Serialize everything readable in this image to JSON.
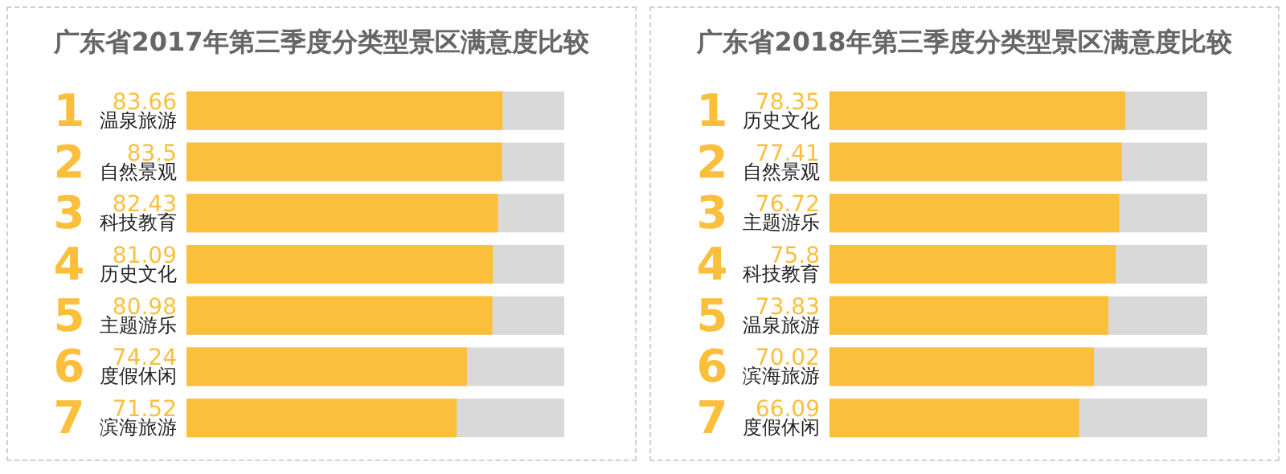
{
  "chart_data": [
    {
      "type": "bar",
      "orientation": "horizontal",
      "title": "广东省2017年第三季度分类型景区满意度比较",
      "categories": [
        "温泉旅游",
        "自然景观",
        "科技教育",
        "历史文化",
        "主题游乐",
        "度假休闲",
        "滨海旅游"
      ],
      "values": [
        83.66,
        83.5,
        82.43,
        81.09,
        80.98,
        74.24,
        71.52
      ],
      "color": "#fbbf3c",
      "xlim": [
        0,
        100
      ],
      "tick_labels": "y",
      "data_labels": true,
      "grid": false,
      "annotations": [
        "1",
        "2",
        "3",
        "4",
        "5",
        "6",
        "7"
      ]
    },
    {
      "type": "bar",
      "orientation": "horizontal",
      "title": "广东省2018年第三季度分类型景区满意度比较",
      "categories": [
        "历史文化",
        "自然景观",
        "主题游乐",
        "科技教育",
        "温泉旅游",
        "滨海旅游",
        "度假休闲"
      ],
      "values": [
        78.35,
        77.41,
        76.72,
        75.8,
        73.83,
        70.02,
        66.09
      ],
      "color": "#fbbf3c",
      "xlim": [
        0,
        100
      ],
      "tick_labels": "y",
      "data_labels": true,
      "grid": false,
      "annotations": [
        "1",
        "2",
        "3",
        "4",
        "5",
        "6",
        "7"
      ]
    }
  ]
}
